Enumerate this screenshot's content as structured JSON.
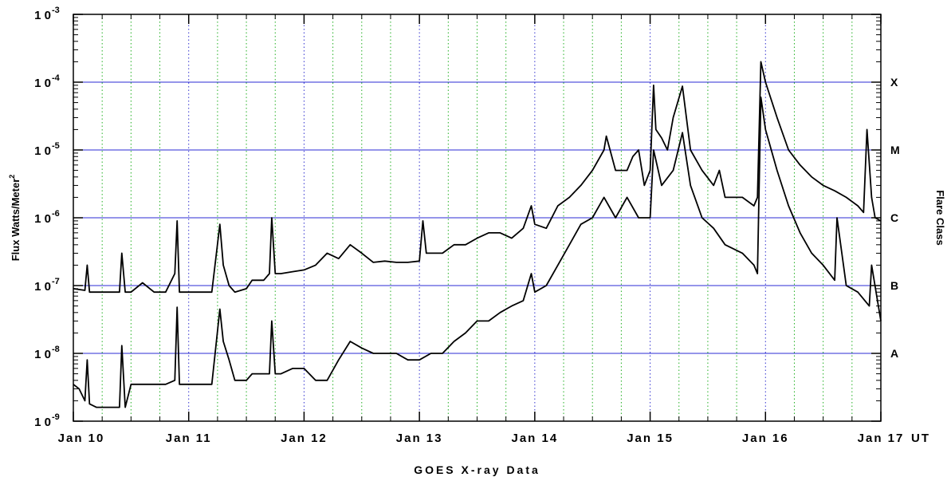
{
  "chart_data": {
    "type": "line",
    "title": "",
    "xlabel": "GOES X-ray Data",
    "x_unit_label": "UT",
    "ylabel": "Flux Watts/Meter",
    "ylabel_superscript": "2",
    "y2label": "Flare Class",
    "yscale": "log",
    "ylim": [
      1e-09,
      0.001
    ],
    "xlim": [
      "Jan 10",
      "Jan 17"
    ],
    "x_ticks": [
      "Jan 10",
      "Jan 11",
      "Jan 12",
      "Jan 13",
      "Jan 14",
      "Jan 15",
      "Jan 16",
      "Jan 17"
    ],
    "y_ticks": [
      {
        "base": "1 0",
        "exp": "-9"
      },
      {
        "base": "1 0",
        "exp": "-8"
      },
      {
        "base": "1 0",
        "exp": "-7"
      },
      {
        "base": "1 0",
        "exp": "-6"
      },
      {
        "base": "1 0",
        "exp": "-5"
      },
      {
        "base": "1 0",
        "exp": "-4"
      },
      {
        "base": "1 0",
        "exp": "-3"
      }
    ],
    "flare_classes": [
      {
        "label": "A",
        "value": 1e-08
      },
      {
        "label": "B",
        "value": 1e-07
      },
      {
        "label": "C",
        "value": 1e-06
      },
      {
        "label": "M",
        "value": 1e-05
      },
      {
        "label": "X",
        "value": 0.0001
      }
    ],
    "colors": {
      "series": "#000000",
      "class_grid": "#2b2bd6",
      "day_grid": "#3434d0",
      "quarter_grid": "#22b022"
    },
    "series": [
      {
        "x": [
          0.0,
          0.1,
          0.12,
          0.14,
          0.2,
          0.3,
          0.4,
          0.42,
          0.45,
          0.5,
          0.6,
          0.7,
          0.8,
          0.88,
          0.9,
          0.92,
          0.95,
          1.0,
          1.1,
          1.2,
          1.27,
          1.3,
          1.35,
          1.4,
          1.5,
          1.55,
          1.65,
          1.7,
          1.72,
          1.75,
          1.8,
          1.9,
          2.0,
          2.1,
          2.2,
          2.3,
          2.4,
          2.5,
          2.6,
          2.7,
          2.8,
          2.9,
          3.0,
          3.03,
          3.06,
          3.1,
          3.2,
          3.3,
          3.4,
          3.5,
          3.6,
          3.7,
          3.8,
          3.9,
          3.97,
          4.0,
          4.1,
          4.2,
          4.3,
          4.4,
          4.5,
          4.6,
          4.62,
          4.7,
          4.8,
          4.85,
          4.9,
          4.95,
          5.0,
          5.03,
          5.05,
          5.1,
          5.15,
          5.2,
          5.28,
          5.35,
          5.45,
          5.55,
          5.6,
          5.65,
          5.7,
          5.8,
          5.9,
          5.93,
          5.96,
          6.0,
          6.1,
          6.2,
          6.3,
          6.4,
          6.5,
          6.6,
          6.7,
          6.8,
          6.85,
          6.88,
          6.92,
          6.95,
          7.0
        ],
        "y": [
          9e-08,
          8.5e-08,
          2e-07,
          8e-08,
          8e-08,
          8e-08,
          8e-08,
          3e-07,
          8e-08,
          8e-08,
          1.1e-07,
          8e-08,
          8e-08,
          1.5e-07,
          9e-07,
          8e-08,
          8e-08,
          8e-08,
          8e-08,
          8e-08,
          8e-07,
          2e-07,
          1e-07,
          8e-08,
          9e-08,
          1.2e-07,
          1.2e-07,
          1.5e-07,
          1e-06,
          1.5e-07,
          1.5e-07,
          1.6e-07,
          1.7e-07,
          2e-07,
          3e-07,
          2.5e-07,
          4e-07,
          3e-07,
          2.2e-07,
          2.3e-07,
          2.2e-07,
          2.2e-07,
          2.3e-07,
          9e-07,
          3e-07,
          3e-07,
          3e-07,
          4e-07,
          4e-07,
          5e-07,
          6e-07,
          6e-07,
          5e-07,
          7e-07,
          1.5e-06,
          8e-07,
          7e-07,
          1.5e-06,
          2e-06,
          3e-06,
          5e-06,
          1e-05,
          1.6e-05,
          5e-06,
          5e-06,
          8e-06,
          1e-05,
          3e-06,
          5e-06,
          9e-05,
          2e-05,
          1.5e-05,
          1e-05,
          3e-05,
          8.7e-05,
          1e-05,
          5e-06,
          3e-06,
          5e-06,
          2e-06,
          2e-06,
          2e-06,
          1.5e-06,
          2e-06,
          0.0002,
          0.0001,
          3e-05,
          1e-05,
          6e-06,
          4e-06,
          3e-06,
          2.5e-06,
          2e-06,
          1.5e-06,
          1.2e-06,
          2e-05,
          2e-06,
          1e-06,
          9e-07
        ]
      },
      {
        "x": [
          0.0,
          0.05,
          0.1,
          0.12,
          0.14,
          0.2,
          0.3,
          0.4,
          0.42,
          0.45,
          0.5,
          0.6,
          0.7,
          0.8,
          0.88,
          0.9,
          0.92,
          0.95,
          1.0,
          1.1,
          1.2,
          1.27,
          1.3,
          1.35,
          1.4,
          1.5,
          1.55,
          1.65,
          1.7,
          1.72,
          1.75,
          1.8,
          1.9,
          2.0,
          2.1,
          2.2,
          2.3,
          2.4,
          2.5,
          2.6,
          2.7,
          2.8,
          2.9,
          3.0,
          3.1,
          3.2,
          3.3,
          3.4,
          3.5,
          3.6,
          3.7,
          3.8,
          3.9,
          3.97,
          4.0,
          4.1,
          4.2,
          4.3,
          4.4,
          4.5,
          4.6,
          4.7,
          4.8,
          4.9,
          5.0,
          5.03,
          5.1,
          5.2,
          5.28,
          5.35,
          5.45,
          5.55,
          5.65,
          5.8,
          5.9,
          5.93,
          5.96,
          6.0,
          6.1,
          6.2,
          6.3,
          6.4,
          6.5,
          6.6,
          6.62,
          6.7,
          6.8,
          6.9,
          6.92,
          7.0
        ],
        "y": [
          3.5e-09,
          3e-09,
          2e-09,
          8e-09,
          1.8e-09,
          1.6e-09,
          1.6e-09,
          1.6e-09,
          1.3e-08,
          1.6e-09,
          3.5e-09,
          3.5e-09,
          3.5e-09,
          3.5e-09,
          4e-09,
          4.8e-08,
          3.5e-09,
          3.5e-09,
          3.5e-09,
          3.5e-09,
          3.5e-09,
          4.5e-08,
          1.5e-08,
          8e-09,
          4e-09,
          4e-09,
          5e-09,
          5e-09,
          5e-09,
          3e-08,
          5e-09,
          5e-09,
          6e-09,
          6e-09,
          4e-09,
          4e-09,
          8e-09,
          1.5e-08,
          1.2e-08,
          1e-08,
          1e-08,
          1e-08,
          8e-09,
          8e-09,
          1e-08,
          1e-08,
          1.5e-08,
          2e-08,
          3e-08,
          3e-08,
          4e-08,
          5e-08,
          6e-08,
          1.5e-07,
          8e-08,
          1e-07,
          2e-07,
          4e-07,
          8e-07,
          1e-06,
          2e-06,
          1e-06,
          2e-06,
          1e-06,
          1e-06,
          1e-05,
          3e-06,
          5e-06,
          1.8e-05,
          3e-06,
          1e-06,
          7e-07,
          4e-07,
          3e-07,
          2e-07,
          1.5e-07,
          6e-05,
          2e-05,
          5e-06,
          1.5e-06,
          6e-07,
          3e-07,
          2e-07,
          1.2e-07,
          1e-06,
          1e-07,
          8e-08,
          5e-08,
          2e-07,
          3e-08
        ]
      }
    ]
  }
}
